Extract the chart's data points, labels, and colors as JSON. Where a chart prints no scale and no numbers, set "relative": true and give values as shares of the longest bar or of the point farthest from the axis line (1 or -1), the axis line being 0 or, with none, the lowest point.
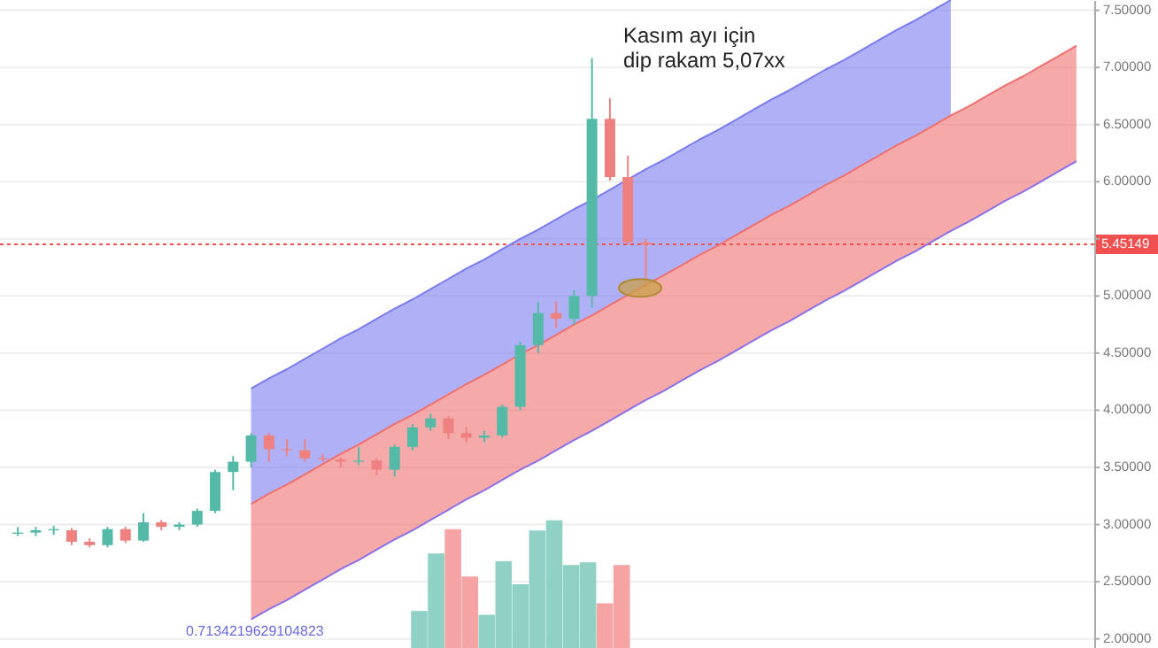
{
  "chart_data": [
    {
      "type": "candlestick",
      "categories": [
        null,
        null,
        null,
        null,
        null,
        null,
        null,
        null,
        null,
        null,
        null,
        null,
        null,
        null,
        null,
        null,
        null,
        null,
        null,
        null,
        null,
        null,
        null,
        null,
        null,
        null,
        null,
        null,
        null,
        null,
        null,
        null,
        null,
        null,
        null,
        null,
        null,
        null,
        null,
        null,
        null,
        null,
        null,
        null,
        null,
        null,
        null,
        null,
        null,
        null,
        null,
        null,
        null,
        null,
        null,
        null,
        null,
        null,
        null,
        null
      ],
      "ohlc": [
        [
          2.92,
          2.98,
          2.9,
          2.93
        ],
        [
          2.93,
          2.98,
          2.9,
          2.95
        ],
        [
          2.95,
          2.99,
          2.91,
          2.96
        ],
        [
          2.95,
          2.97,
          2.82,
          2.85
        ],
        [
          2.85,
          2.88,
          2.8,
          2.82
        ],
        [
          2.82,
          2.98,
          2.8,
          2.96
        ],
        [
          2.96,
          2.98,
          2.84,
          2.86
        ],
        [
          2.86,
          3.1,
          2.85,
          3.02
        ],
        [
          3.02,
          3.04,
          2.95,
          2.98
        ],
        [
          2.98,
          3.02,
          2.95,
          3.0
        ],
        [
          3.0,
          3.14,
          2.98,
          3.12
        ],
        [
          3.12,
          3.48,
          3.1,
          3.46
        ],
        [
          3.46,
          3.6,
          3.3,
          3.55
        ],
        [
          3.55,
          3.8,
          3.5,
          3.78
        ],
        [
          3.78,
          3.8,
          3.55,
          3.66
        ],
        [
          3.66,
          3.75,
          3.6,
          3.65
        ],
        [
          3.65,
          3.75,
          3.55,
          3.58
        ],
        [
          3.58,
          3.62,
          3.55,
          3.57
        ],
        [
          3.57,
          3.59,
          3.5,
          3.55
        ],
        [
          3.55,
          3.68,
          3.52,
          3.56
        ],
        [
          3.56,
          3.58,
          3.43,
          3.48
        ],
        [
          3.48,
          3.7,
          3.42,
          3.68
        ],
        [
          3.68,
          3.88,
          3.65,
          3.85
        ],
        [
          3.85,
          3.97,
          3.82,
          3.93
        ],
        [
          3.93,
          3.95,
          3.75,
          3.8
        ],
        [
          3.8,
          3.85,
          3.72,
          3.76
        ],
        [
          3.76,
          3.82,
          3.72,
          3.78
        ],
        [
          3.78,
          4.05,
          3.76,
          4.03
        ],
        [
          4.03,
          4.6,
          4.0,
          4.57
        ],
        [
          4.57,
          4.95,
          4.5,
          4.85
        ],
        [
          4.85,
          4.95,
          4.72,
          4.8
        ],
        [
          4.8,
          5.05,
          4.75,
          5.0
        ],
        [
          5.0,
          7.08,
          4.9,
          6.55
        ],
        [
          6.55,
          6.73,
          6.01,
          6.04
        ],
        [
          6.04,
          6.23,
          5.45,
          5.47
        ],
        [
          5.47,
          5.5,
          5.07,
          5.45
        ],
        null,
        null,
        null,
        null,
        null,
        null,
        null,
        null,
        null,
        null,
        null,
        null,
        null,
        null,
        null,
        null,
        null,
        null,
        null,
        null,
        null,
        null,
        null,
        null
      ],
      "colors": [
        "#55b9a8",
        "#55b9a8",
        "#55b9a8",
        "#ee8080",
        "#ee8080",
        "#55b9a8",
        "#ee8080",
        "#55b9a8",
        "#ee8080",
        "#55b9a8",
        "#55b9a8",
        "#55b9a8",
        "#55b9a8",
        "#55b9a8",
        "#ee8080",
        "#ee8080",
        "#ee8080",
        "#ee8080",
        "#ee8080",
        "#55b9a8",
        "#ee8080",
        "#55b9a8",
        "#55b9a8",
        "#55b9a8",
        "#ee8080",
        "#ee8080",
        "#55b9a8",
        "#55b9a8",
        "#55b9a8",
        "#55b9a8",
        "#ee8080",
        "#55b9a8",
        "#55b9a8",
        "#ee8080",
        "#ee8080",
        "#ee8080",
        null,
        null,
        null,
        null,
        null,
        null,
        null,
        null,
        null,
        null,
        null,
        null,
        null,
        null,
        null,
        null,
        null,
        null,
        null,
        null,
        null,
        null,
        null,
        null
      ],
      "series": [
        {
          "type": "line",
          "color": "#7b7bf0",
          "values": [
            null,
            null,
            null,
            null,
            null,
            null,
            null,
            null,
            null,
            null,
            null,
            null,
            null,
            4.19,
            4.28,
            4.36,
            4.45,
            4.54,
            4.63,
            4.71,
            4.8,
            4.89,
            4.97,
            5.06,
            5.15,
            5.24,
            5.32,
            5.41,
            5.5,
            5.58,
            5.67,
            5.76,
            5.84,
            5.93,
            6.02,
            6.11,
            6.19,
            6.28,
            6.37,
            6.45,
            6.54,
            6.63,
            6.72,
            6.8,
            6.89,
            6.98,
            7.06,
            7.15,
            7.24,
            7.33,
            7.41,
            7.5,
            7.59,
            null,
            null,
            null,
            null,
            null,
            null,
            null
          ],
          "lower": [
            null,
            null,
            null,
            null,
            null,
            null,
            null,
            null,
            null,
            null,
            null,
            null,
            null,
            3.18,
            3.27,
            3.35,
            3.44,
            3.53,
            3.62,
            3.7,
            3.79,
            3.88,
            3.96,
            4.05,
            4.14,
            4.23,
            4.31,
            4.4,
            4.49,
            4.57,
            4.66,
            4.75,
            4.83,
            4.92,
            5.01,
            5.1,
            5.18,
            5.27,
            5.36,
            5.44,
            5.53,
            5.62,
            5.71,
            5.79,
            5.88,
            5.97,
            6.05,
            6.14,
            6.23,
            6.32,
            6.4,
            6.49,
            6.58,
            null,
            null,
            null,
            null,
            null,
            null,
            null
          ],
          "upper": [
            null,
            null,
            null,
            null,
            null,
            null,
            null,
            null,
            null,
            null,
            null,
            null,
            null,
            4.19,
            4.28,
            4.36,
            4.45,
            4.54,
            4.63,
            4.71,
            4.8,
            4.89,
            4.97,
            5.06,
            5.15,
            5.24,
            5.32,
            5.41,
            5.5,
            5.58,
            5.67,
            5.76,
            5.84,
            5.93,
            6.02,
            6.11,
            6.19,
            6.28,
            6.37,
            6.45,
            6.54,
            6.63,
            6.72,
            6.8,
            6.89,
            6.98,
            7.06,
            7.15,
            7.24,
            7.33,
            7.41,
            7.5,
            7.59,
            null,
            null,
            null,
            null,
            null,
            null,
            null
          ]
        },
        {
          "type": "line",
          "color": "#f07070",
          "values": [
            null,
            null,
            null,
            null,
            null,
            null,
            null,
            null,
            null,
            null,
            null,
            null,
            null,
            3.18,
            3.27,
            3.35,
            3.44,
            3.53,
            3.62,
            3.7,
            3.79,
            3.88,
            3.96,
            4.05,
            4.14,
            4.23,
            4.31,
            4.4,
            4.49,
            4.57,
            4.66,
            4.75,
            4.83,
            4.92,
            5.01,
            5.1,
            5.18,
            5.27,
            5.36,
            5.44,
            5.53,
            5.62,
            5.71,
            5.79,
            5.88,
            5.97,
            6.05,
            6.14,
            6.23,
            6.32,
            6.4,
            6.49,
            6.58,
            6.66,
            6.75,
            6.84,
            6.92,
            7.01,
            7.1,
            7.19
          ],
          "lower": [
            null,
            null,
            null,
            null,
            null,
            null,
            null,
            null,
            null,
            null,
            null,
            null,
            null,
            2.17,
            2.26,
            2.34,
            2.43,
            2.52,
            2.61,
            2.69,
            2.78,
            2.87,
            2.95,
            3.04,
            3.13,
            3.22,
            3.3,
            3.39,
            3.48,
            3.56,
            3.65,
            3.74,
            3.82,
            3.91,
            4.0,
            4.09,
            4.17,
            4.26,
            4.35,
            4.43,
            4.52,
            4.61,
            4.7,
            4.78,
            4.87,
            4.96,
            5.04,
            5.13,
            5.22,
            5.31,
            5.39,
            5.48,
            5.57,
            5.65,
            5.74,
            5.83,
            5.91,
            6.0,
            6.09,
            6.18
          ],
          "upper": [
            null,
            null,
            null,
            null,
            null,
            null,
            null,
            null,
            null,
            null,
            null,
            null,
            null,
            3.18,
            3.27,
            3.35,
            3.44,
            3.53,
            3.62,
            3.7,
            3.79,
            3.88,
            3.96,
            4.05,
            4.14,
            4.23,
            4.31,
            4.4,
            4.49,
            4.57,
            4.66,
            4.75,
            4.83,
            4.92,
            5.01,
            5.1,
            5.18,
            5.27,
            5.36,
            5.44,
            5.53,
            5.62,
            5.71,
            5.79,
            5.88,
            5.97,
            6.05,
            6.14,
            6.23,
            6.32,
            6.4,
            6.49,
            6.58,
            6.66,
            6.75,
            6.84,
            6.92,
            7.01,
            7.1,
            7.19
          ]
        },
        {
          "type": "line",
          "color": "#8a70e8",
          "values": [
            null,
            null,
            null,
            null,
            null,
            null,
            null,
            null,
            null,
            null,
            null,
            null,
            null,
            2.17,
            2.26,
            2.34,
            2.43,
            2.52,
            2.61,
            2.69,
            2.78,
            2.87,
            2.95,
            3.04,
            3.13,
            3.22,
            3.3,
            3.39,
            3.48,
            3.56,
            3.65,
            3.74,
            3.82,
            3.91,
            4.0,
            4.09,
            4.17,
            4.26,
            4.35,
            4.43,
            4.52,
            4.61,
            4.7,
            4.78,
            4.87,
            4.96,
            5.04,
            5.13,
            5.22,
            5.31,
            5.39,
            5.48,
            5.57,
            5.65,
            5.74,
            5.83,
            5.91,
            6.0,
            6.09,
            6.18
          ]
        }
      ],
      "ylim": [
        1.92,
        7.59
      ],
      "yticks": [
        {
          "value": 2,
          "label": "2.00000"
        },
        {
          "value": 2.5,
          "label": "2.50000"
        },
        {
          "value": 3,
          "label": "3.00000"
        },
        {
          "value": 3.5,
          "label": "3.50000"
        },
        {
          "value": 4,
          "label": "4.00000"
        },
        {
          "value": 4.5,
          "label": "4.50000"
        },
        {
          "value": 5,
          "label": "5.00000"
        },
        {
          "value": 5.5,
          "label": null
        },
        {
          "value": 6,
          "label": "6.00000"
        },
        {
          "value": 6.5,
          "label": "6.50000"
        },
        {
          "value": 7,
          "label": "7.00000"
        },
        {
          "value": 7.5,
          "label": "7.50000"
        }
      ],
      "tick_labels": "y",
      "grid": "y",
      "ref_lines": [
        {
          "axis": "y",
          "value": 5.45149,
          "label": "5.45149",
          "color": "#f05050",
          "line_style": "dotted"
        }
      ],
      "annotations": [
        "Kasım ayı için\ndip rakam 5,07xx",
        "0.7134219629104823"
      ]
    },
    {
      "type": "bar",
      "relative": true,
      "tick_labels": false,
      "categories": [
        null,
        null,
        null,
        null,
        null,
        null,
        null,
        null,
        null,
        null,
        null,
        null,
        null
      ],
      "values": [
        0.29,
        0.74,
        0.93,
        0.56,
        0.26,
        0.68,
        0.5,
        0.92,
        1,
        0.65,
        0.67,
        0.35,
        0.65
      ],
      "colors": [
        "#8fd1c5",
        "#8fd1c5",
        "#f5a3a3",
        "#f5a3a3",
        "#8fd1c5",
        "#8fd1c5",
        "#8fd1c5",
        "#8fd1c5",
        "#8fd1c5",
        "#8fd1c5",
        "#8fd1c5",
        "#f5a3a3",
        "#f5a3a3"
      ]
    }
  ]
}
